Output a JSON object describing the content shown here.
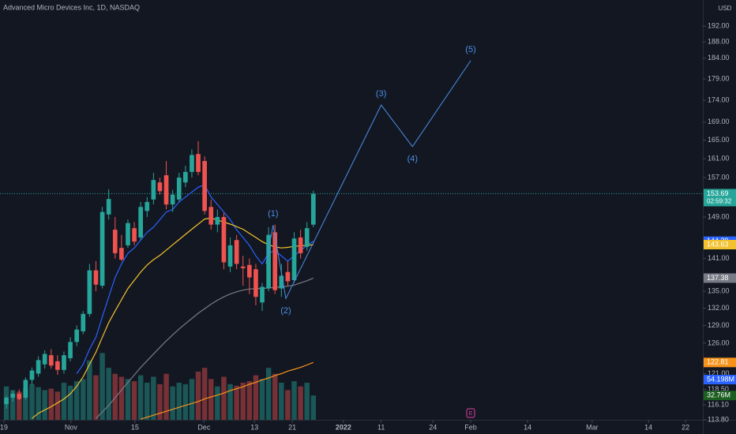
{
  "chart_data": {
    "type": "candlestick",
    "title": "Advanced Micro Devices Inc, 1D, NASDAQ",
    "currency": "USD",
    "countdown": "02:59:32",
    "log_scale": true,
    "up_color": "#26a69a",
    "down_color": "#ef5350",
    "xlim": [
      -1,
      108.9
    ],
    "ylim": [
      113.8,
      198.8
    ],
    "volume_ylim": [
      0,
      100
    ],
    "xticks": [
      {
        "value": -0.4,
        "label": "19"
      },
      {
        "value": 10.1,
        "label": "Nov"
      },
      {
        "value": 20.1,
        "label": "15"
      },
      {
        "value": 30.9,
        "label": "Dec"
      },
      {
        "value": 38.8,
        "label": "13"
      },
      {
        "value": 44.7,
        "label": "21"
      },
      {
        "value": 52.7,
        "label": "2022"
      },
      {
        "value": 58.6,
        "label": "11"
      },
      {
        "value": 66.7,
        "label": "24"
      },
      {
        "value": 72.6,
        "label": "Feb"
      },
      {
        "value": 81.5,
        "label": "14"
      },
      {
        "value": 91.6,
        "label": "Mar"
      },
      {
        "value": 100.4,
        "label": "14"
      },
      {
        "value": 106.2,
        "label": "22"
      }
    ],
    "yticks": [
      {
        "value": 192,
        "label": "192.00"
      },
      {
        "value": 188,
        "label": "188.00"
      },
      {
        "value": 184,
        "label": "184.00"
      },
      {
        "value": 179,
        "label": "179.00"
      },
      {
        "value": 174,
        "label": "174.00"
      },
      {
        "value": 169,
        "label": "169.00"
      },
      {
        "value": 165,
        "label": "165.00"
      },
      {
        "value": 161,
        "label": "161.00"
      },
      {
        "value": 157,
        "label": "157.00"
      },
      {
        "value": 149,
        "label": "149.00"
      },
      {
        "value": 141,
        "label": "141.00"
      },
      {
        "value": 135,
        "label": "135.00"
      },
      {
        "value": 132,
        "label": "132.00"
      },
      {
        "value": 129,
        "label": "129.00"
      },
      {
        "value": 126,
        "label": "126.00"
      },
      {
        "value": 121,
        "label": "121.00"
      },
      {
        "value": 118.5,
        "label": "118.50"
      },
      {
        "value": 116.1,
        "label": "116.10"
      },
      {
        "value": 113.8,
        "label": "113.80"
      }
    ],
    "open": [
      116.2,
      117.2,
      117.8,
      117.2,
      120.0,
      121.0,
      122.5,
      124.0,
      123.0,
      121.6,
      123.5,
      126.2,
      128.0,
      131.0,
      138.8,
      136.0,
      149.5,
      146.5,
      143.0,
      143.5,
      146.8,
      145.0,
      150.2,
      152.5,
      156.0,
      157.5,
      151.5,
      152.5,
      156.0,
      158.2,
      162.0,
      160.5,
      151.0,
      147.5,
      149.0,
      139.5,
      144.5,
      139.5,
      139.8,
      139.0,
      133.0,
      135.5,
      146.0,
      135.5,
      138.5,
      137.0,
      145.0,
      143.2,
      147.5
    ],
    "high": [
      117.5,
      118.3,
      118.5,
      120.4,
      122.0,
      123.8,
      124.8,
      125.0,
      124.0,
      124.6,
      127.0,
      129.0,
      131.5,
      140.0,
      140.5,
      151.0,
      154.6,
      149.0,
      145.5,
      148.5,
      148.0,
      152.0,
      153.0,
      158.0,
      157.0,
      160.5,
      154.5,
      158.0,
      159.5,
      163.0,
      164.8,
      161.5,
      152.5,
      150.5,
      149.8,
      145.0,
      145.5,
      141.5,
      141.0,
      140.0,
      136.5,
      147.0,
      147.5,
      140.0,
      140.5,
      146.0,
      146.5,
      148.0,
      154.3
    ],
    "low": [
      115.5,
      116.6,
      116.8,
      116.9,
      119.2,
      120.5,
      121.8,
      121.8,
      120.8,
      121.0,
      123.0,
      125.5,
      127.5,
      130.5,
      135.0,
      135.5,
      148.5,
      141.0,
      140.5,
      143.0,
      143.5,
      144.5,
      149.0,
      151.5,
      153.5,
      150.5,
      150.0,
      152.0,
      155.0,
      157.0,
      157.5,
      149.5,
      146.5,
      146.0,
      139.0,
      138.5,
      139.0,
      136.0,
      134.5,
      132.5,
      131.5,
      135.0,
      134.5,
      134.0,
      136.0,
      136.5,
      141.0,
      142.5,
      147.0
    ],
    "close": [
      117.2,
      117.8,
      117.0,
      120.0,
      121.5,
      123.2,
      124.2,
      122.3,
      121.6,
      124.0,
      126.2,
      128.3,
      131.0,
      138.8,
      136.2,
      150.0,
      152.6,
      142.0,
      140.8,
      147.8,
      144.2,
      151.0,
      152.0,
      156.5,
      154.2,
      151.5,
      153.5,
      157.0,
      158.2,
      161.8,
      158.2,
      150.2,
      147.5,
      149.0,
      140.3,
      143.5,
      140.0,
      139.2,
      137.5,
      134.0,
      135.8,
      145.5,
      135.2,
      137.8,
      136.8,
      144.8,
      142.0,
      146.8,
      153.69
    ],
    "volume": [
      45,
      40,
      38,
      42,
      48,
      44,
      40,
      42,
      38,
      50,
      46,
      52,
      55,
      80,
      60,
      90,
      70,
      62,
      58,
      55,
      52,
      60,
      50,
      58,
      48,
      62,
      45,
      50,
      48,
      55,
      65,
      70,
      55,
      45,
      58,
      48,
      46,
      50,
      52,
      60,
      55,
      70,
      62,
      50,
      40,
      52,
      45,
      50,
      32.76
    ],
    "moving_averages": [
      {
        "color": "#2962ff",
        "values": [
          null,
          null,
          null,
          null,
          null,
          null,
          null,
          null,
          null,
          null,
          null,
          121,
          122.5,
          125,
          127,
          130.5,
          134,
          137.5,
          140,
          142,
          143,
          144.5,
          146,
          147,
          148.5,
          150,
          150.5,
          152,
          153,
          154,
          155,
          155.5,
          153,
          151.5,
          150,
          148.5,
          146.5,
          145,
          143.5,
          141.5,
          140,
          142,
          142.5,
          141.5,
          140.5,
          141.5,
          142.5,
          143.5,
          144.29
        ]
      },
      {
        "color": "#f2c12e",
        "values": [
          null,
          null,
          null,
          null,
          114,
          114.8,
          115.3,
          115.8,
          116.4,
          117,
          117.8,
          119,
          120.5,
          122.5,
          124.5,
          127,
          129.5,
          131.5,
          133.5,
          135.5,
          137,
          138.5,
          139.8,
          140.8,
          141.6,
          142.6,
          143.6,
          144.6,
          145.6,
          146.6,
          147.6,
          148.6,
          148.8,
          148.4,
          148,
          147.6,
          147.1,
          146.6,
          145.8,
          145,
          144.2,
          143.6,
          143.2,
          143,
          143.1,
          143.3,
          143.4,
          143.5,
          143.63
        ]
      },
      {
        "color": "#787b86",
        "values": [
          null,
          null,
          null,
          null,
          null,
          null,
          null,
          null,
          null,
          null,
          null,
          null,
          null,
          null,
          114,
          115,
          116,
          117.2,
          118.4,
          119.6,
          120.8,
          122,
          123.1,
          124.2,
          125.3,
          126.4,
          127.4,
          128.4,
          129.3,
          130.2,
          131.1,
          131.9,
          132.7,
          133.4,
          134,
          134.5,
          134.9,
          135.2,
          135.4,
          135.5,
          135.5,
          135.6,
          135.7,
          135.8,
          135.9,
          136.1,
          136.5,
          136.9,
          137.38
        ]
      },
      {
        "color": "#f7931a",
        "values": [
          null,
          null,
          null,
          null,
          null,
          null,
          null,
          null,
          null,
          null,
          null,
          null,
          null,
          null,
          null,
          null,
          null,
          null,
          null,
          null,
          null,
          113.9,
          114.2,
          114.5,
          114.8,
          115.1,
          115.4,
          115.7,
          116.0,
          116.3,
          116.6,
          117.0,
          117.3,
          117.6,
          117.9,
          118.3,
          118.6,
          118.9,
          119.3,
          119.6,
          120.0,
          120.3,
          120.7,
          121.0,
          121.4,
          121.7,
          122.0,
          122.4,
          122.81
        ]
      }
    ],
    "price_tags": [
      {
        "value": 153.69,
        "label": "153.69",
        "color": "#26a69a"
      },
      {
        "value": 144.29,
        "label": "144.29",
        "color": "#2962ff"
      },
      {
        "value": 143.63,
        "label": "143.63",
        "color": "#f2c12e"
      },
      {
        "value": 137.38,
        "label": "137.38",
        "color": "#787b86"
      },
      {
        "value": 122.81,
        "label": "122.81",
        "color": "#f7931a"
      }
    ],
    "volume_tags": [
      {
        "value": 54.198,
        "label": "54.198M",
        "color": "#2962ff"
      },
      {
        "value": 32.76,
        "label": "32.76M",
        "color": "#1b5e20"
      }
    ],
    "wave": {
      "color": "#4a8fe7",
      "x": [
        40.6,
        41.7,
        43.7,
        58.6,
        63.5,
        72.6
      ],
      "y": [
        140,
        147.4,
        133.7,
        172.9,
        163.6,
        183.4
      ],
      "labels": [
        null,
        "(1)",
        "(2)",
        "(3)",
        "(4)",
        "(5)"
      ]
    },
    "events": [
      {
        "x": 72.6,
        "label": "E"
      }
    ]
  }
}
